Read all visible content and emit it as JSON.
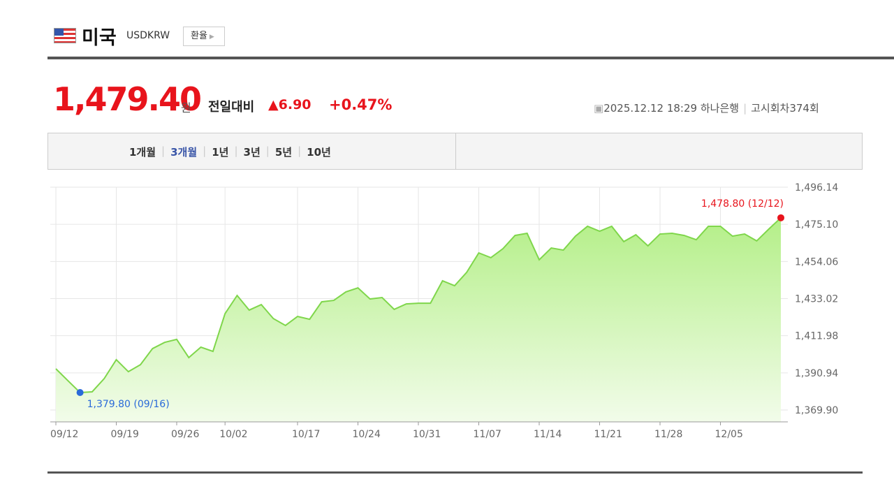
{
  "header": {
    "country": "미국",
    "code": "USDKRW",
    "button": "환율"
  },
  "quote": {
    "price": "1,479.40",
    "unit": "원",
    "change_label": "전일대비",
    "change": "6.90",
    "change_pct": "+0.47%",
    "datetime": "2025.12.12 18:29",
    "bank": "하나은행",
    "round_label": "고시회차",
    "round": "374",
    "round_unit": "회"
  },
  "tabs": {
    "items": [
      "1개월",
      "3개월",
      "1년",
      "3년",
      "5년",
      "10년"
    ],
    "active": 1
  },
  "chart_data": {
    "type": "line",
    "fill": true,
    "color": "#7fd64b",
    "min_color": "#2a6ad9",
    "max_color": "#e8141c",
    "categories": [
      "09/12",
      null,
      null,
      null,
      null,
      "09/19",
      null,
      null,
      null,
      null,
      "09/26",
      null,
      null,
      null,
      "10/02",
      null,
      null,
      null,
      null,
      null,
      "10/17",
      null,
      null,
      null,
      null,
      "10/24",
      null,
      null,
      null,
      null,
      "10/31",
      null,
      null,
      null,
      null,
      "11/07",
      null,
      null,
      null,
      null,
      "11/14",
      null,
      null,
      null,
      null,
      "11/21",
      null,
      null,
      null,
      null,
      "11/28",
      null,
      null,
      null,
      null,
      "12/05",
      null,
      null,
      null,
      null,
      null
    ],
    "values": [
      1393.24,
      1386.5,
      1379.8,
      1380.2,
      1387.7,
      1398.4,
      1391.6,
      1395.6,
      1404.7,
      1408.2,
      1409.9,
      1399.6,
      1405.5,
      1403.1,
      1424.5,
      1434.8,
      1426.5,
      1429.6,
      1421.7,
      1417.8,
      1422.9,
      1421.3,
      1431.2,
      1432.0,
      1436.8,
      1439.1,
      1432.8,
      1433.6,
      1426.9,
      1430.0,
      1430.4,
      1430.4,
      1443.1,
      1440.3,
      1447.9,
      1458.9,
      1456.2,
      1461.3,
      1468.8,
      1470.0,
      1455.0,
      1461.7,
      1460.5,
      1468.4,
      1474.0,
      1471.2,
      1474.0,
      1465.3,
      1469.2,
      1462.9,
      1469.6,
      1470.0,
      1468.8,
      1466.4,
      1474.0,
      1474.0,
      1468.4,
      1469.6,
      1465.7,
      1472.4,
      1478.8
    ],
    "min_label": "1,379.80 (09/16)",
    "max_label": "1,478.80 (12/12)",
    "ylim": [
      1363.17,
      1496.14
    ],
    "yticks": [
      {
        "value": 1496.14,
        "label": "1,496.14"
      },
      {
        "value": 1475.1,
        "label": "1,475.10"
      },
      {
        "value": 1454.06,
        "label": "1,454.06"
      },
      {
        "value": 1433.02,
        "label": "1,433.02"
      },
      {
        "value": 1411.98,
        "label": "1,411.98"
      },
      {
        "value": 1390.94,
        "label": "1,390.94"
      },
      {
        "value": 1369.9,
        "label": "1,369.90"
      }
    ],
    "grid": true
  }
}
